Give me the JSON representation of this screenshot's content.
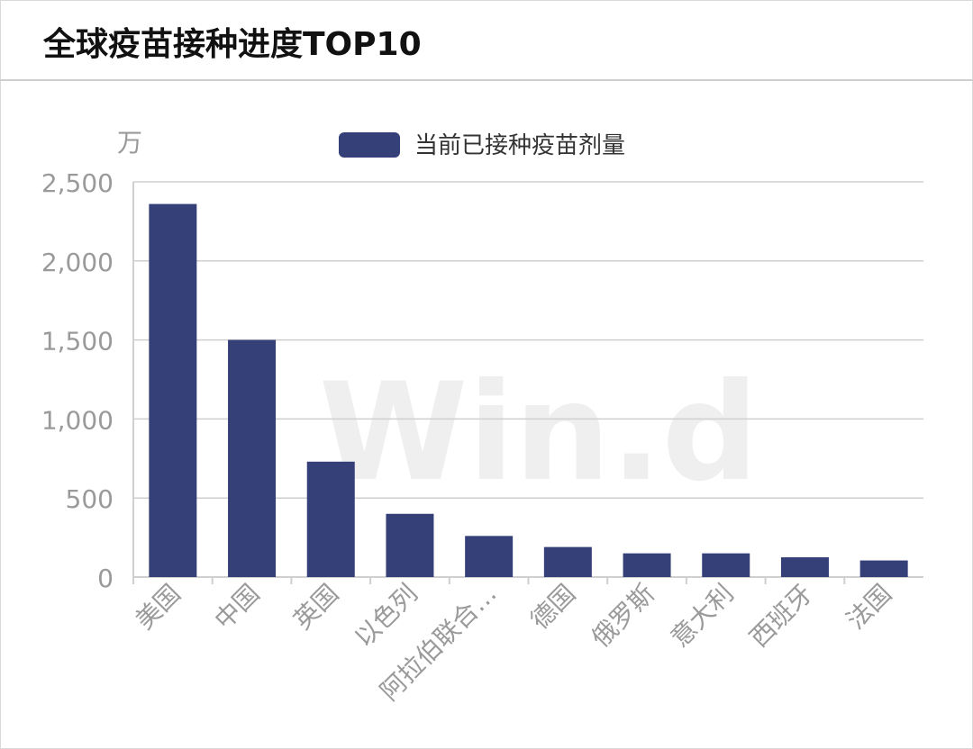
{
  "header": {
    "title": "全球疫苗接种进度TOP10"
  },
  "watermark": "Win.d",
  "chart_data": {
    "type": "bar",
    "title": "全球疫苗接种进度TOP10",
    "unit_label": "万",
    "categories": [
      "美国",
      "中国",
      "英国",
      "以色列",
      "阿拉伯联合…",
      "德国",
      "俄罗斯",
      "意大利",
      "西班牙",
      "法国"
    ],
    "series": [
      {
        "name": "当前已接种疫苗剂量",
        "values": [
          2360,
          1500,
          730,
          400,
          260,
          190,
          150,
          150,
          125,
          105
        ]
      }
    ],
    "ylim": [
      0,
      2500
    ],
    "yticks": [
      0,
      500,
      1000,
      1500,
      2000,
      2500
    ],
    "ytick_labels": [
      "0",
      "500",
      "1,000",
      "1,500",
      "2,000",
      "2,500"
    ],
    "grid": true,
    "legend_position": "top-center",
    "colors": {
      "bar": "#353f78",
      "grid": "#cfcfcf",
      "axis_text": "#9a9a9a",
      "watermark": "#efefef"
    }
  }
}
